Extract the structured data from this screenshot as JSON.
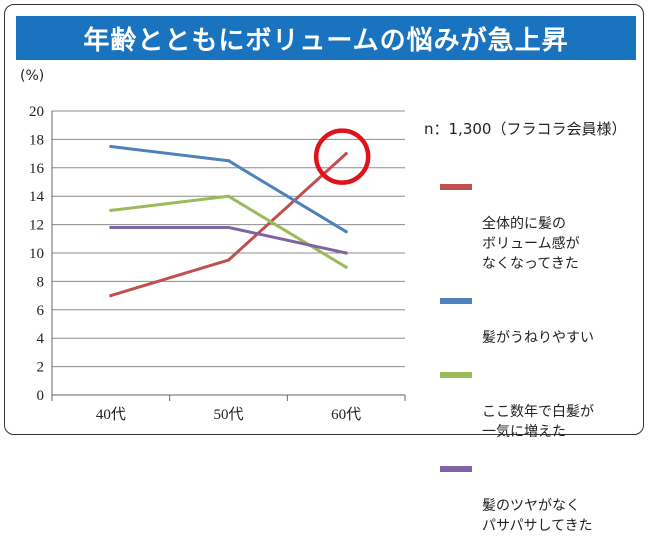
{
  "title": "年齢とともにボリュームの悩みが急上昇",
  "unit_label": "(%)",
  "note": "n：1,300（フラコラ会員様）",
  "chart_data": {
    "type": "line",
    "categories": [
      "40代",
      "50代",
      "60代"
    ],
    "ylim": [
      0,
      20
    ],
    "yticks": [
      "0",
      "2",
      "4",
      "6",
      "8",
      "10",
      "12",
      "14",
      "16",
      "18",
      "20"
    ],
    "grid": true,
    "legend_position": "right",
    "series": [
      {
        "name": "全体的に髪の\nボリューム感が\nなくなってきた",
        "color": "#c0504d",
        "values": [
          7.0,
          9.5,
          17.0
        ]
      },
      {
        "name": "髪がうねりやすい",
        "color": "#4f81bd",
        "values": [
          17.5,
          16.5,
          11.5
        ]
      },
      {
        "name": "ここ数年で白髪が\n一気に増えた",
        "color": "#9bbb59",
        "values": [
          13.0,
          14.0,
          9.0
        ]
      },
      {
        "name": "髪のツヤがなく\nパサパサしてきた",
        "color": "#8064a2",
        "values": [
          11.8,
          11.8,
          10.0
        ]
      }
    ],
    "highlight": {
      "series": 0,
      "category": 2,
      "color": "#e0121b"
    }
  }
}
